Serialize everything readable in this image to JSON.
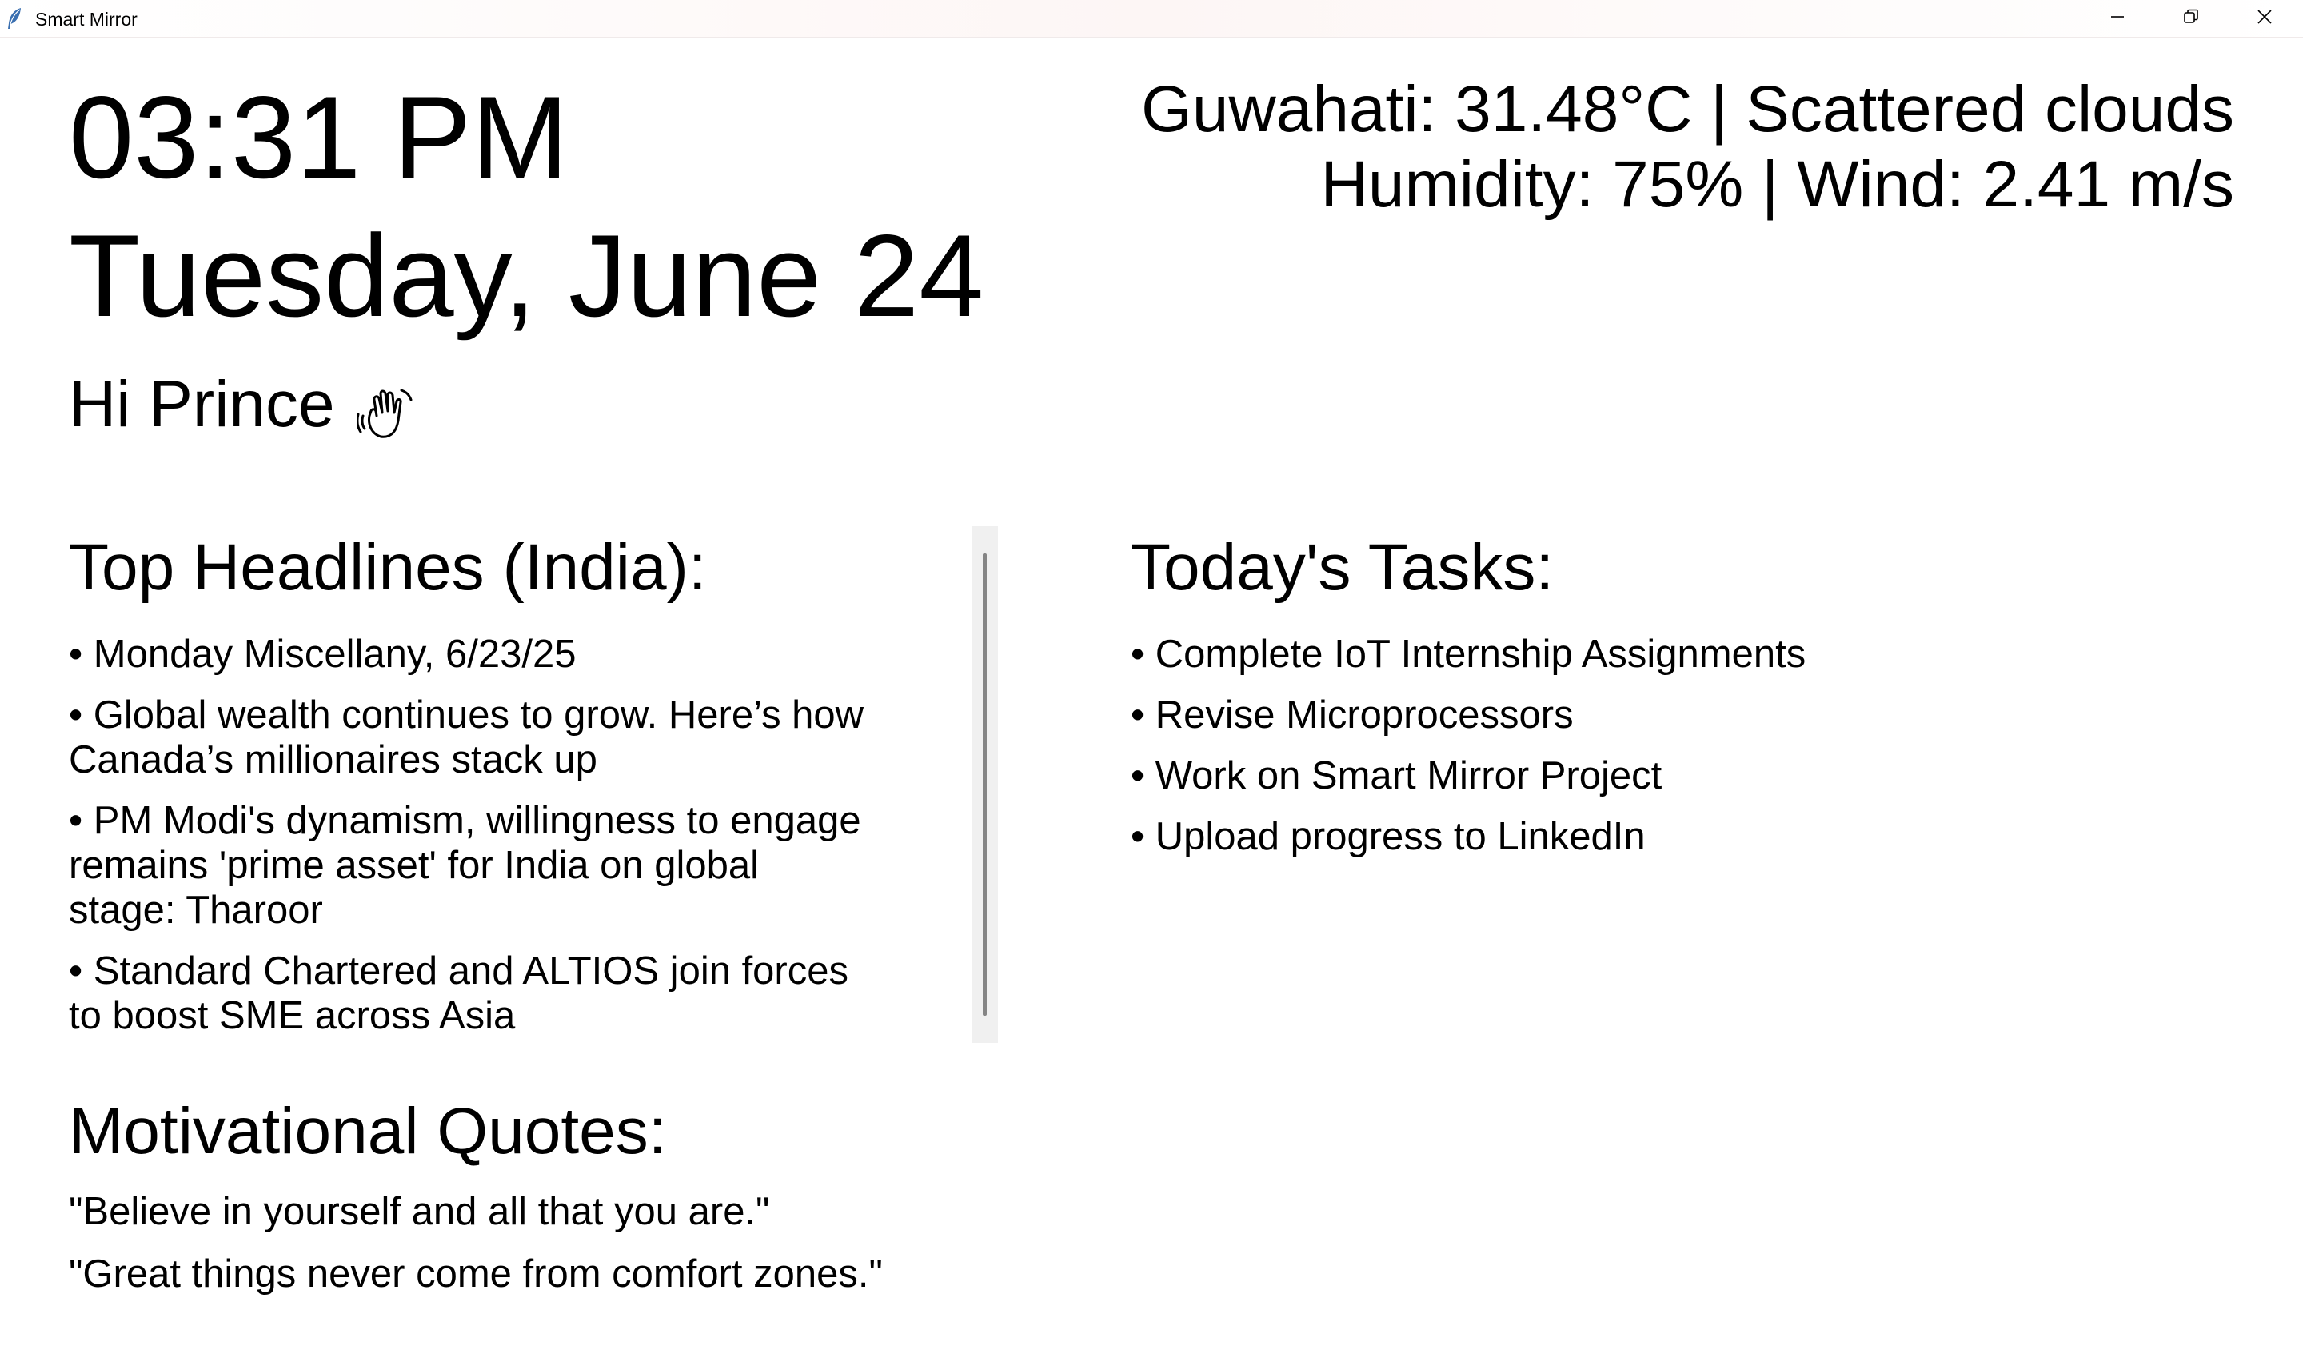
{
  "window": {
    "title": "Smart Mirror",
    "app_icon": "feather-icon",
    "controls": [
      "minimize-icon",
      "restore-icon",
      "close-icon"
    ]
  },
  "clock": {
    "time": "03:31 PM",
    "date": "Tuesday, June 24"
  },
  "greeting": {
    "text": "Hi Prince",
    "icon": "waving-hand-icon"
  },
  "weather": {
    "line1": "Guwahati: 31.48°C | Scattered clouds",
    "line2": "Humidity: 75% | Wind: 2.41 m/s"
  },
  "news": {
    "title": "Top Headlines (India):",
    "items": [
      "• Monday Miscellany, 6/23/25",
      "• Global wealth continues to grow. Here’s how Canada’s millionaires stack up",
      "• PM Modi's dynamism, willingness to engage remains 'prime asset' for India on global stage: Tharoor",
      "• Standard Chartered and ALTIOS join forces to boost SME across Asia"
    ]
  },
  "tasks": {
    "title": "Today's Tasks:",
    "items": [
      "• Complete IoT Internship Assignments",
      "• Revise Microprocessors",
      "• Work on Smart Mirror Project",
      "• Upload progress to LinkedIn"
    ]
  },
  "quotes": {
    "title": "Motivational Quotes:",
    "items": [
      "\"Believe in yourself and all that you are.\"",
      "\"Great things never come from comfort zones.\""
    ]
  }
}
